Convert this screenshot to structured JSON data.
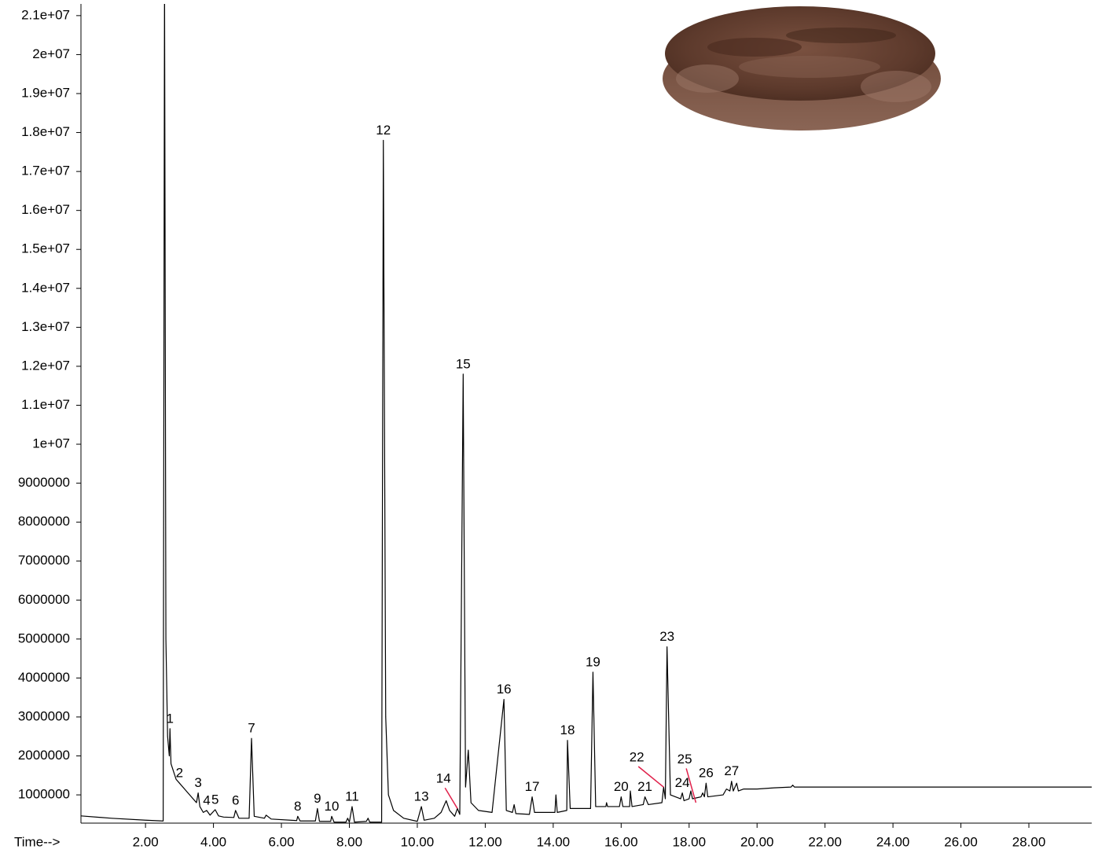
{
  "chart_data": {
    "type": "line",
    "x_label": "Time-->",
    "color": "#000000",
    "leader_color": "#e0204a",
    "xlim": [
      0.1,
      29.85
    ],
    "ylim": [
      275000,
      21300000
    ],
    "xticks": [
      {
        "value": 2,
        "label": "2.00"
      },
      {
        "value": 4,
        "label": "4.00"
      },
      {
        "value": 6,
        "label": "6.00"
      },
      {
        "value": 8,
        "label": "8.00"
      },
      {
        "value": 10,
        "label": "10.00"
      },
      {
        "value": 12,
        "label": "12.00"
      },
      {
        "value": 14,
        "label": "14.00"
      },
      {
        "value": 16,
        "label": "16.00"
      },
      {
        "value": 18,
        "label": "18.00"
      },
      {
        "value": 20,
        "label": "20.00"
      },
      {
        "value": 22,
        "label": "22.00"
      },
      {
        "value": 24,
        "label": "24.00"
      },
      {
        "value": 26,
        "label": "26.00"
      },
      {
        "value": 28,
        "label": "28.00"
      }
    ],
    "yticks": [
      1000000,
      2000000,
      3000000,
      4000000,
      5000000,
      6000000,
      7000000,
      8000000,
      9000000,
      {
        "value": 10000000,
        "label": "1e+07"
      },
      {
        "value": 11000000,
        "label": "1.1e+07"
      },
      {
        "value": 12000000,
        "label": "1.2e+07"
      },
      {
        "value": 13000000,
        "label": "1.3e+07"
      },
      {
        "value": 14000000,
        "label": "1.4e+07"
      },
      {
        "value": 15000000,
        "label": "1.5e+07"
      },
      {
        "value": 16000000,
        "label": "1.6e+07"
      },
      {
        "value": 17000000,
        "label": "1.7e+07"
      },
      {
        "value": 18000000,
        "label": "1.8e+07"
      },
      {
        "value": 19000000,
        "label": "1.9e+07"
      },
      {
        "value": 20000000,
        "label": "2e+07"
      },
      {
        "value": 21000000,
        "label": "2.1e+07"
      }
    ],
    "x": [
      0.1,
      1.0,
      2.0,
      2.5,
      2.52,
      2.56,
      2.6,
      2.65,
      2.7,
      2.72,
      2.75,
      2.9,
      3.0,
      3.2,
      3.5,
      3.55,
      3.6,
      3.7,
      3.8,
      3.9,
      4.05,
      4.15,
      4.3,
      4.6,
      4.65,
      4.75,
      5.05,
      5.12,
      5.2,
      5.5,
      5.55,
      5.7,
      6.45,
      6.48,
      6.55,
      7.0,
      7.06,
      7.12,
      7.45,
      7.48,
      7.55,
      7.9,
      7.95,
      8.0,
      8.08,
      8.15,
      8.5,
      8.55,
      8.6,
      8.95,
      9.0,
      9.07,
      9.15,
      9.3,
      9.6,
      10.0,
      10.12,
      10.2,
      10.5,
      10.7,
      10.85,
      10.95,
      11.1,
      11.18,
      11.25,
      11.35,
      11.42,
      11.5,
      11.58,
      11.8,
      12.2,
      12.55,
      12.62,
      12.8,
      12.85,
      12.9,
      13.3,
      13.38,
      13.45,
      14.05,
      14.08,
      14.12,
      14.4,
      14.42,
      14.5,
      15.1,
      15.17,
      15.25,
      15.55,
      15.57,
      15.6,
      15.95,
      16.0,
      16.05,
      16.25,
      16.27,
      16.32,
      16.65,
      16.7,
      16.8,
      17.2,
      17.25,
      17.3,
      17.35,
      17.45,
      17.75,
      17.8,
      17.85,
      18.0,
      18.05,
      18.1,
      18.35,
      18.4,
      18.45,
      18.5,
      18.55,
      19.0,
      19.1,
      19.2,
      19.25,
      19.3,
      19.4,
      19.45,
      19.6,
      20.0,
      20.5,
      21.0,
      21.05,
      21.1,
      22.0,
      29.85
    ],
    "values": [
      460000,
      400000,
      350000,
      330000,
      330000,
      22000000,
      5000000,
      2500000,
      2000000,
      2700000,
      1800000,
      1400000,
      1300000,
      1100000,
      800000,
      1050000,
      700000,
      550000,
      600000,
      480000,
      620000,
      460000,
      430000,
      420000,
      600000,
      400000,
      400000,
      2450000,
      450000,
      400000,
      480000,
      380000,
      340000,
      450000,
      330000,
      330000,
      650000,
      320000,
      320000,
      450000,
      300000,
      300000,
      400000,
      300000,
      700000,
      300000,
      320000,
      400000,
      300000,
      300000,
      17800000,
      3000000,
      1000000,
      600000,
      400000,
      320000,
      700000,
      350000,
      400000,
      550000,
      850000,
      600000,
      450000,
      650000,
      500000,
      11800000,
      1200000,
      2150000,
      800000,
      600000,
      550000,
      3450000,
      600000,
      550000,
      750000,
      520000,
      500000,
      950000,
      550000,
      550000,
      1000000,
      550000,
      600000,
      2400000,
      650000,
      650000,
      4150000,
      700000,
      700000,
      800000,
      700000,
      700000,
      950000,
      700000,
      700000,
      1100000,
      700000,
      750000,
      950000,
      750000,
      800000,
      1200000,
      900000,
      4800000,
      1000000,
      900000,
      1050000,
      850000,
      900000,
      1100000,
      900000,
      950000,
      1050000,
      950000,
      1300000,
      950000,
      1000000,
      1150000,
      1100000,
      1350000,
      1100000,
      1300000,
      1100000,
      1150000,
      1150000,
      1180000,
      1200000,
      1250000,
      1200000,
      1200000,
      1200000
    ],
    "annotations": [
      {
        "text": "1",
        "x": 2.72,
        "y": 2700000
      },
      {
        "text": "2",
        "x": 3.0,
        "y": 1300000
      },
      {
        "text": "3",
        "x": 3.55,
        "y": 1050000
      },
      {
        "text": "4",
        "x": 3.8,
        "y": 600000
      },
      {
        "text": "5",
        "x": 4.05,
        "y": 620000
      },
      {
        "text": "6",
        "x": 4.65,
        "y": 600000
      },
      {
        "text": "7",
        "x": 5.12,
        "y": 2450000
      },
      {
        "text": "8",
        "x": 6.48,
        "y": 450000
      },
      {
        "text": "9",
        "x": 7.06,
        "y": 650000
      },
      {
        "text": "10",
        "x": 7.48,
        "y": 450000
      },
      {
        "text": "11",
        "x": 8.08,
        "y": 700000
      },
      {
        "text": "12",
        "x": 9.0,
        "y": 17800000
      },
      {
        "text": "13",
        "x": 10.12,
        "y": 700000
      },
      {
        "text": "14",
        "x": 11.18,
        "y": 650000,
        "xytext": [
          10.77,
          1400000
        ]
      },
      {
        "text": "15",
        "x": 11.35,
        "y": 11800000
      },
      {
        "text": "16",
        "x": 12.55,
        "y": 3450000
      },
      {
        "text": "17",
        "x": 13.38,
        "y": 950000
      },
      {
        "text": "18",
        "x": 14.42,
        "y": 2400000
      },
      {
        "text": "19",
        "x": 15.17,
        "y": 4150000
      },
      {
        "text": "20",
        "x": 16.0,
        "y": 950000
      },
      {
        "text": "21",
        "x": 16.7,
        "y": 950000
      },
      {
        "text": "22",
        "x": 17.25,
        "y": 1200000,
        "xytext": [
          16.46,
          1950000
        ]
      },
      {
        "text": "23",
        "x": 17.35,
        "y": 4800000
      },
      {
        "text": "24",
        "x": 17.8,
        "y": 1050000
      },
      {
        "text": "25",
        "x": 18.2,
        "y": 800000,
        "xytext": [
          17.87,
          1900000
        ]
      },
      {
        "text": "26",
        "x": 18.5,
        "y": 1300000
      },
      {
        "text": "27",
        "x": 19.25,
        "y": 1350000
      }
    ]
  }
}
